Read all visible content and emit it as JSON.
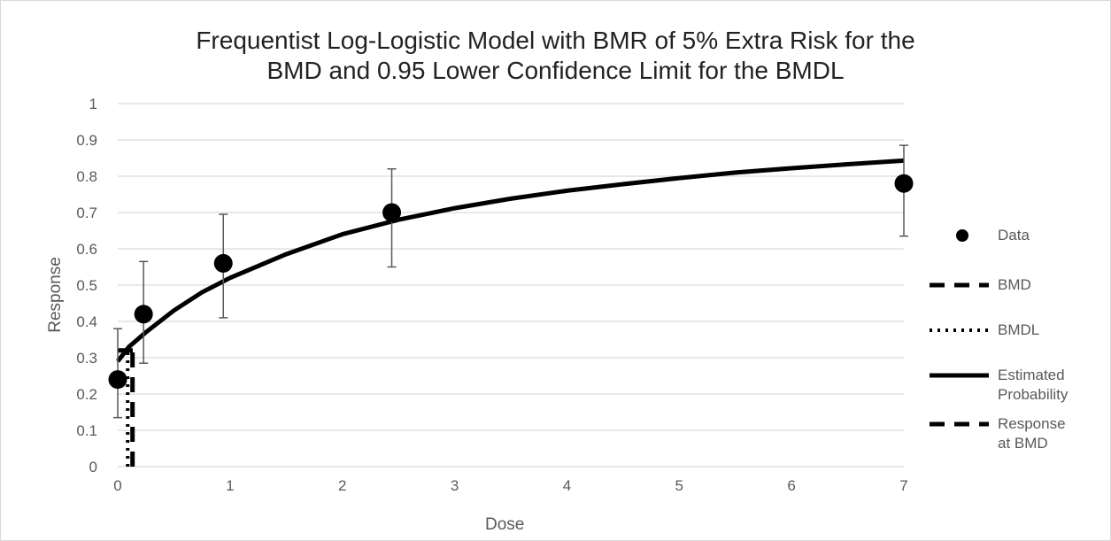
{
  "chart_data": {
    "type": "scatter",
    "title_line1": "Frequentist Log-Logistic Model with BMR of 5% Extra Risk for the",
    "title_line2": "BMD and 0.95 Lower Confidence Limit for the BMDL",
    "xlabel": "Dose",
    "ylabel": "Response",
    "xlim": [
      0,
      7
    ],
    "ylim": [
      0,
      1
    ],
    "x_ticks": [
      "0",
      "1",
      "2",
      "3",
      "4",
      "5",
      "6",
      "7"
    ],
    "y_ticks": [
      "0",
      "0.1",
      "0.2",
      "0.3",
      "0.4",
      "0.5",
      "0.6",
      "0.7",
      "0.8",
      "0.9",
      "1"
    ],
    "grid": true,
    "legend_position": "right",
    "legend": {
      "data": "Data",
      "bmd": "BMD",
      "bmdl": "BMDL",
      "estimated_line1": "Estimated",
      "estimated_line2": "Probability",
      "response_line1": "Response",
      "response_line2": "at BMD"
    },
    "data_points": [
      {
        "x": 0,
        "y": 0.24,
        "lower": 0.135,
        "upper": 0.38
      },
      {
        "x": 0.23,
        "y": 0.42,
        "lower": 0.285,
        "upper": 0.565
      },
      {
        "x": 0.94,
        "y": 0.56,
        "lower": 0.41,
        "upper": 0.695
      },
      {
        "x": 2.44,
        "y": 0.7,
        "lower": 0.55,
        "upper": 0.82
      },
      {
        "x": 7,
        "y": 0.78,
        "lower": 0.635,
        "upper": 0.885
      }
    ],
    "estimated_probability_curve": [
      {
        "x": 0,
        "y": 0.29
      },
      {
        "x": 0.1,
        "y": 0.33
      },
      {
        "x": 0.25,
        "y": 0.37
      },
      {
        "x": 0.5,
        "y": 0.43
      },
      {
        "x": 0.75,
        "y": 0.48
      },
      {
        "x": 1,
        "y": 0.52
      },
      {
        "x": 1.5,
        "y": 0.585
      },
      {
        "x": 2,
        "y": 0.64
      },
      {
        "x": 2.5,
        "y": 0.68
      },
      {
        "x": 3,
        "y": 0.712
      },
      {
        "x": 3.5,
        "y": 0.738
      },
      {
        "x": 4,
        "y": 0.76
      },
      {
        "x": 4.5,
        "y": 0.778
      },
      {
        "x": 5,
        "y": 0.795
      },
      {
        "x": 5.5,
        "y": 0.81
      },
      {
        "x": 6,
        "y": 0.822
      },
      {
        "x": 6.5,
        "y": 0.833
      },
      {
        "x": 7,
        "y": 0.843
      }
    ],
    "bmd": 0.1,
    "bmdl": 0.065,
    "response_at_bmd": 0.32,
    "colors": {
      "series": "#000000",
      "grid": "#d9d9d9",
      "error_bar": "#595959"
    }
  }
}
